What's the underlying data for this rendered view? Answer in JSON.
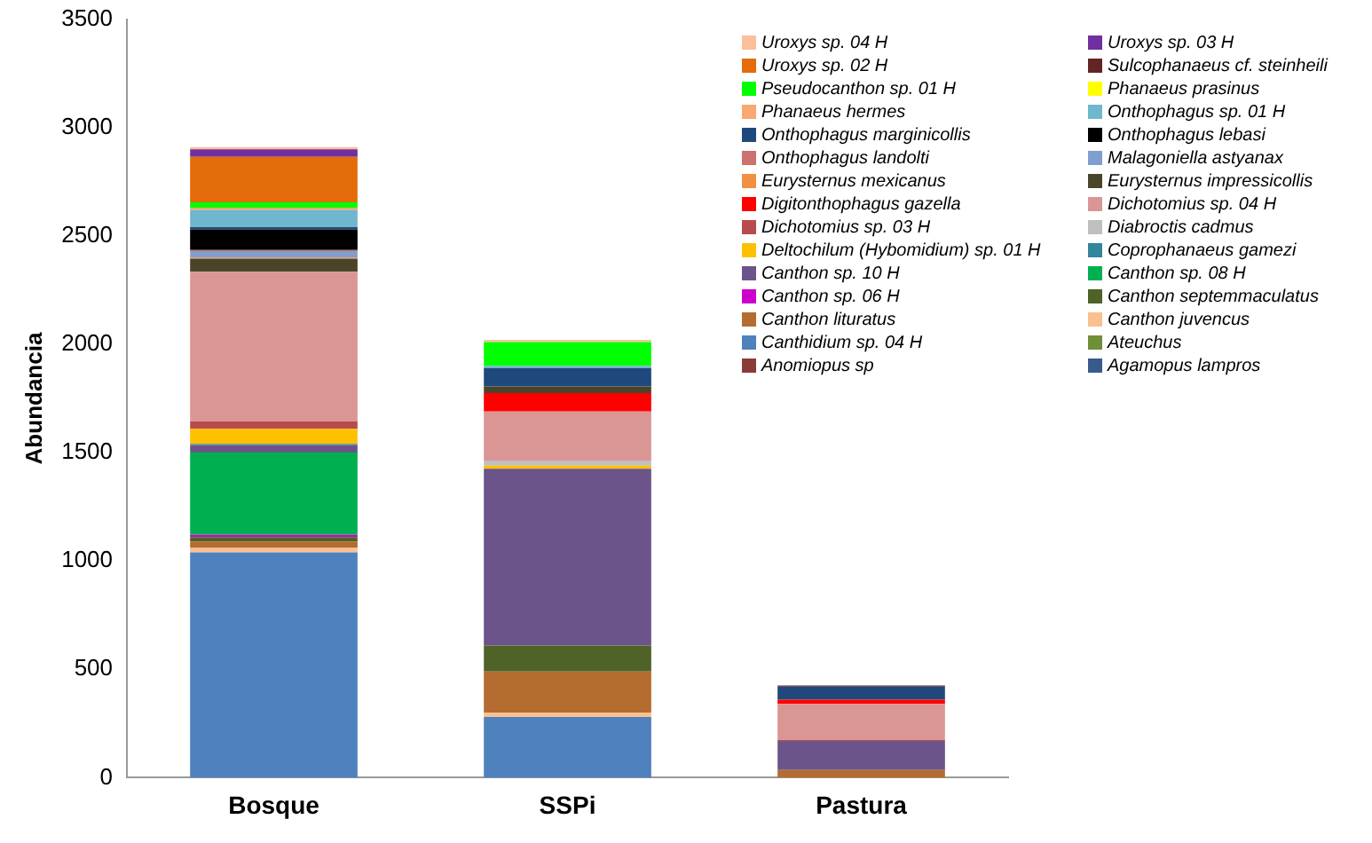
{
  "chart_data": {
    "type": "bar",
    "stacked": true,
    "ylabel": "Abundancia",
    "categories": [
      "Bosque",
      "SSPi",
      "Pastura"
    ],
    "ylim": [
      0,
      3500
    ],
    "yticks": [
      0,
      500,
      1000,
      1500,
      2000,
      2500,
      3000,
      3500
    ],
    "grid": false,
    "legend": "top right",
    "series": [
      {
        "name": "Agamopus lampros",
        "color": "#3a5a8c",
        "values": [
          0,
          0,
          0
        ]
      },
      {
        "name": "Anomiopus sp",
        "color": "#8b3a3a",
        "values": [
          0,
          0,
          0
        ]
      },
      {
        "name": "Ateuchus",
        "color": "#6f8f3a",
        "values": [
          0,
          0,
          0
        ]
      },
      {
        "name": "Canthidium sp. 04 H",
        "color": "#4f81bd",
        "values": [
          1040,
          280,
          0
        ]
      },
      {
        "name": "Canthon juvencus",
        "color": "#fac090",
        "values": [
          20,
          20,
          0
        ]
      },
      {
        "name": "Canthon lituratus",
        "color": "#b46c30",
        "values": [
          30,
          190,
          35
        ]
      },
      {
        "name": "Canthon septemmaculatus",
        "color": "#4f6228",
        "values": [
          20,
          120,
          0
        ]
      },
      {
        "name": "Canthon sp. 06 H",
        "color": "#cc00cc",
        "values": [
          10,
          0,
          0
        ]
      },
      {
        "name": "Canthon sp. 08 H",
        "color": "#00b050",
        "values": [
          380,
          0,
          0
        ]
      },
      {
        "name": "Canthon sp. 10 H",
        "color": "#6b548a",
        "values": [
          35,
          815,
          135
        ]
      },
      {
        "name": "Coprophanaeus gamezi",
        "color": "#31859c",
        "values": [
          5,
          0,
          0
        ]
      },
      {
        "name": "Deltochilum (Hybomidium) sp. 01 H",
        "color": "#ffc000",
        "values": [
          70,
          15,
          0
        ]
      },
      {
        "name": "Diabroctis cadmus",
        "color": "#bfbfbf",
        "values": [
          0,
          20,
          0
        ]
      },
      {
        "name": "Dichotomius sp. 03 H",
        "color": "#b84c4c",
        "values": [
          35,
          0,
          5
        ]
      },
      {
        "name": "Dichotomius sp. 04 H",
        "color": "#da9694",
        "values": [
          690,
          230,
          165
        ]
      },
      {
        "name": "Digitonthophagus gazella",
        "color": "#ff0000",
        "values": [
          0,
          85,
          20
        ]
      },
      {
        "name": "Eurysternus impressicollis",
        "color": "#4a452a",
        "values": [
          60,
          30,
          0
        ]
      },
      {
        "name": "Eurysternus mexicanus",
        "color": "#f09040",
        "values": [
          5,
          0,
          0
        ]
      },
      {
        "name": "Malagoniella astyanax",
        "color": "#7f9fcf",
        "values": [
          30,
          0,
          0
        ]
      },
      {
        "name": "Onthophagus landolti",
        "color": "#cc7070",
        "values": [
          5,
          0,
          0
        ]
      },
      {
        "name": "Onthophagus lebasi",
        "color": "#000000",
        "values": [
          95,
          0,
          0
        ]
      },
      {
        "name": "Onthophagus marginicollis",
        "color": "#1f497d",
        "values": [
          10,
          85,
          60
        ]
      },
      {
        "name": "Onthophagus sp. 01 H",
        "color": "#6fb7cc",
        "values": [
          80,
          10,
          0
        ]
      },
      {
        "name": "Phanaeus hermes",
        "color": "#f8a870",
        "values": [
          10,
          0,
          0
        ]
      },
      {
        "name": "Phanaeus prasinus",
        "color": "#ffff00",
        "values": [
          0,
          0,
          0
        ]
      },
      {
        "name": "Pseudocanthon sp. 01 H",
        "color": "#00ff00",
        "values": [
          25,
          110,
          0
        ]
      },
      {
        "name": "Sulcophanaeus cf. steinheili",
        "color": "#632523",
        "values": [
          0,
          0,
          5
        ]
      },
      {
        "name": "Uroxys sp. 02 H",
        "color": "#e46c0a",
        "values": [
          210,
          0,
          0
        ]
      },
      {
        "name": "Uroxys sp. 03 H",
        "color": "#7030a0",
        "values": [
          35,
          0,
          0
        ]
      },
      {
        "name": "Uroxys sp. 04 H",
        "color": "#fcbf9a",
        "values": [
          10,
          10,
          0
        ]
      }
    ]
  }
}
